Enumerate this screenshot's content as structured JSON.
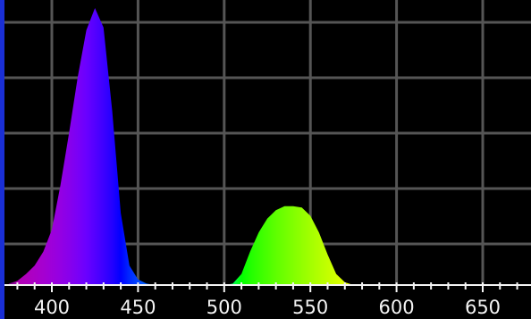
{
  "chart_data": {
    "type": "area",
    "title": "",
    "xlabel": "",
    "ylabel": "",
    "xlim": [
      370,
      680
    ],
    "ylim": [
      0,
      1
    ],
    "x_ticks": [
      "400",
      "450",
      "500",
      "550",
      "600",
      "650"
    ],
    "x_tick_values": [
      400,
      450,
      500,
      550,
      600,
      650
    ],
    "grid": true,
    "grid_x_step_nm": 50,
    "grid_y_values": [
      0.2,
      0.4,
      0.6,
      0.8,
      1.0
    ],
    "minor_tick_step_nm": 10,
    "series": [
      {
        "values": [
          {
            "x": 375,
            "y": 0.005
          },
          {
            "x": 380,
            "y": 0.015
          },
          {
            "x": 385,
            "y": 0.04
          },
          {
            "x": 390,
            "y": 0.07
          },
          {
            "x": 395,
            "y": 0.12
          },
          {
            "x": 400,
            "y": 0.2
          },
          {
            "x": 405,
            "y": 0.36
          },
          {
            "x": 410,
            "y": 0.55
          },
          {
            "x": 415,
            "y": 0.75
          },
          {
            "x": 420,
            "y": 0.92
          },
          {
            "x": 425,
            "y": 1.0
          },
          {
            "x": 430,
            "y": 0.93
          },
          {
            "x": 435,
            "y": 0.63
          },
          {
            "x": 440,
            "y": 0.26
          },
          {
            "x": 445,
            "y": 0.07
          },
          {
            "x": 450,
            "y": 0.02
          },
          {
            "x": 455,
            "y": 0.005
          },
          {
            "x": 460,
            "y": 0.0
          },
          {
            "x": 500,
            "y": 0.0
          },
          {
            "x": 505,
            "y": 0.005
          },
          {
            "x": 510,
            "y": 0.04
          },
          {
            "x": 515,
            "y": 0.12
          },
          {
            "x": 520,
            "y": 0.19
          },
          {
            "x": 525,
            "y": 0.24
          },
          {
            "x": 530,
            "y": 0.27
          },
          {
            "x": 535,
            "y": 0.285
          },
          {
            "x": 540,
            "y": 0.285
          },
          {
            "x": 545,
            "y": 0.28
          },
          {
            "x": 550,
            "y": 0.25
          },
          {
            "x": 555,
            "y": 0.19
          },
          {
            "x": 560,
            "y": 0.11
          },
          {
            "x": 565,
            "y": 0.04
          },
          {
            "x": 570,
            "y": 0.01
          },
          {
            "x": 575,
            "y": 0.0
          },
          {
            "x": 680,
            "y": 0.0
          }
        ]
      }
    ],
    "colors": {
      "background": "#000000",
      "grid": "#555555",
      "tick_label": "#f2f2f2",
      "left_axis": "#1a2fd6"
    }
  }
}
